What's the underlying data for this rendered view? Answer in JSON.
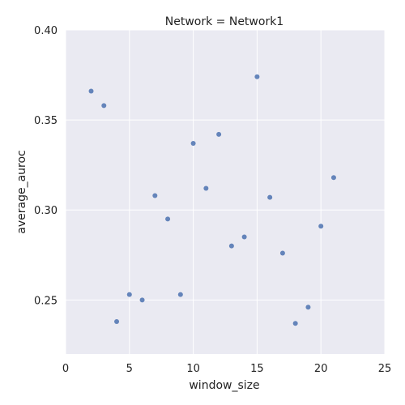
{
  "chart_data": {
    "type": "scatter",
    "title": "Network = Network1",
    "xlabel": "window_size",
    "ylabel": "average_auroc",
    "xlim": [
      0,
      25
    ],
    "ylim": [
      0.22,
      0.4
    ],
    "x_ticks": [
      0,
      5,
      10,
      15,
      20,
      25
    ],
    "y_ticks": [
      0.25,
      0.3,
      0.35,
      0.4
    ],
    "x_tick_labels": [
      "0",
      "5",
      "10",
      "15",
      "20",
      "25"
    ],
    "y_tick_labels": [
      "0.25",
      "0.30",
      "0.35",
      "0.40"
    ],
    "grid": true,
    "colors": {
      "background": "#eaeaf2",
      "grid": "#ffffff",
      "point": "#4c72b0"
    },
    "points": [
      {
        "x": 2,
        "y": 0.366
      },
      {
        "x": 3,
        "y": 0.358
      },
      {
        "x": 4,
        "y": 0.238
      },
      {
        "x": 5,
        "y": 0.253
      },
      {
        "x": 6,
        "y": 0.25
      },
      {
        "x": 7,
        "y": 0.308
      },
      {
        "x": 8,
        "y": 0.295
      },
      {
        "x": 9,
        "y": 0.253
      },
      {
        "x": 10,
        "y": 0.337
      },
      {
        "x": 11,
        "y": 0.312
      },
      {
        "x": 12,
        "y": 0.342
      },
      {
        "x": 13,
        "y": 0.28
      },
      {
        "x": 14,
        "y": 0.285
      },
      {
        "x": 15,
        "y": 0.374
      },
      {
        "x": 16,
        "y": 0.307
      },
      {
        "x": 17,
        "y": 0.276
      },
      {
        "x": 18,
        "y": 0.237
      },
      {
        "x": 19,
        "y": 0.246
      },
      {
        "x": 20,
        "y": 0.291
      },
      {
        "x": 21,
        "y": 0.318
      }
    ]
  }
}
